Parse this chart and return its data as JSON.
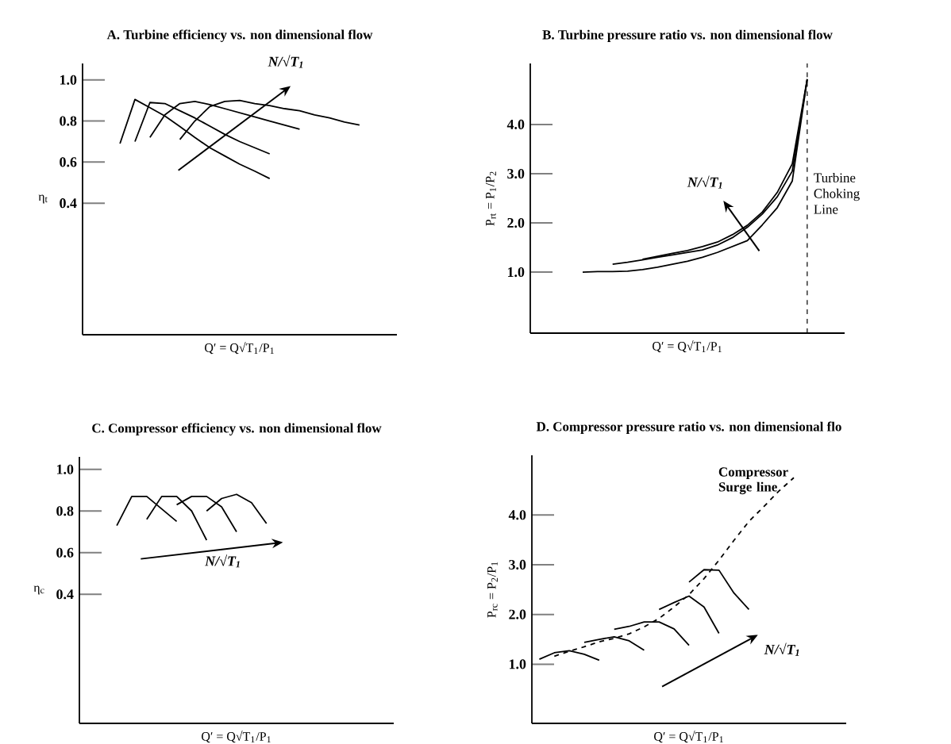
{
  "chart_data": [
    {
      "type": "line",
      "title": "A. Turbine efficiency vs. non dimensional flow",
      "xlabel": "Q′ = Q√T$_{1}$/P$_{1}$",
      "ylabel": "η$_{t}$",
      "ylim": [
        -0.24,
        1.08
      ],
      "yticks": [
        {
          "value": 0.4,
          "label": "0.4"
        },
        {
          "value": 0.6,
          "label": "0.6"
        },
        {
          "value": 0.8,
          "label": "0.8"
        },
        {
          "value": 1.0,
          "label": "1.0"
        }
      ],
      "tick_labels": "y",
      "annotations": [
        "N/√T$_{1}$"
      ],
      "categories": [
        null,
        null,
        null,
        null,
        null,
        null,
        null,
        null,
        null,
        null,
        null,
        null,
        null,
        null,
        null,
        null,
        null,
        null,
        null,
        null,
        null
      ],
      "series": [
        {
          "color": "#000000",
          "values": [
            null,
            null,
            0.69,
            0.905,
            0.865,
            0.824,
            0.773,
            0.72,
            0.67,
            0.63,
            0.59,
            0.556,
            0.52,
            null,
            null,
            null,
            null,
            null,
            null,
            null,
            null
          ]
        },
        {
          "color": "#000000",
          "values": [
            null,
            null,
            null,
            0.7,
            0.89,
            0.885,
            0.85,
            0.815,
            0.775,
            0.735,
            0.7,
            0.67,
            0.64,
            null,
            null,
            null,
            null,
            null,
            null,
            null,
            null
          ]
        },
        {
          "color": "#000000",
          "values": [
            null,
            null,
            null,
            null,
            0.72,
            0.83,
            0.885,
            0.895,
            0.88,
            0.86,
            0.84,
            0.82,
            0.8,
            0.78,
            0.76,
            null,
            null,
            null,
            null,
            null,
            null
          ]
        },
        {
          "color": "#000000",
          "values": [
            null,
            null,
            null,
            null,
            null,
            null,
            0.71,
            0.8,
            0.87,
            0.895,
            0.9,
            0.885,
            0.875,
            0.86,
            0.85,
            0.83,
            0.815,
            0.795,
            0.78,
            null,
            null
          ]
        }
      ]
    },
    {
      "type": "line",
      "title": "B. Turbine pressure ratio vs. non dimensional flow",
      "xlabel": "Q′ = Q√T$_{1}$/P$_{1}$",
      "ylabel": "P$_{rt}$ = P$_{1}$/P$_{2}$",
      "ylim": [
        -0.24,
        5.24
      ],
      "yticks": [
        {
          "value": 1.0,
          "label": "1.0"
        },
        {
          "value": 2.0,
          "label": "2.0"
        },
        {
          "value": 3.0,
          "label": "3.0"
        },
        {
          "value": 4.0,
          "label": "4.0"
        }
      ],
      "tick_labels": "y",
      "annotations": [
        "N/√T$_{1}$",
        "Turbine Choking Line"
      ],
      "categories": [
        null,
        null,
        null,
        null,
        null,
        null,
        null,
        null,
        null,
        null,
        null,
        null,
        null,
        null,
        null,
        null,
        null,
        null,
        null,
        null,
        null
      ],
      "series": [
        {
          "color": "#000000",
          "values": [
            null,
            null,
            null,
            1.0,
            1.01,
            1.01,
            1.02,
            1.05,
            1.1,
            1.16,
            1.22,
            1.3,
            1.4,
            1.52,
            1.64,
            1.96,
            2.31,
            2.85,
            4.92,
            null,
            null
          ]
        },
        {
          "color": "#000000",
          "values": [
            null,
            null,
            null,
            null,
            null,
            1.16,
            1.2,
            1.25,
            1.3,
            1.35,
            1.4,
            1.45,
            1.55,
            1.7,
            1.91,
            2.18,
            2.53,
            3.05,
            4.92,
            null,
            null
          ]
        },
        {
          "color": "#000000",
          "values": [
            null,
            null,
            null,
            null,
            null,
            null,
            null,
            1.26,
            1.32,
            1.38,
            1.44,
            1.52,
            1.61,
            1.76,
            1.95,
            2.22,
            2.62,
            3.2,
            4.92,
            null,
            null
          ]
        }
      ]
    },
    {
      "type": "line",
      "title": "C. Compressor efficiency vs. non dimensional flow",
      "xlabel": "Q′ = Q√T$_{1}$/P$_{1}$",
      "ylabel": "η$_{c}$",
      "ylim": [
        -0.22,
        1.06
      ],
      "yticks": [
        {
          "value": 0.4,
          "label": "0.4"
        },
        {
          "value": 0.6,
          "label": "0.6"
        },
        {
          "value": 0.8,
          "label": "0.8"
        },
        {
          "value": 1.0,
          "label": "1.0"
        }
      ],
      "tick_labels": "y",
      "annotations": [
        "N/√T$_{1}$"
      ],
      "categories": [
        null,
        null,
        null,
        null,
        null,
        null,
        null,
        null,
        null,
        null,
        null,
        null,
        null,
        null,
        null,
        null,
        null,
        null,
        null,
        null,
        null
      ],
      "series": [
        {
          "color": "#000000",
          "values": [
            null,
            null,
            0.73,
            0.87,
            0.87,
            0.81,
            0.75,
            null,
            null,
            null,
            null,
            null,
            null,
            null,
            null,
            null,
            null,
            null,
            null,
            null,
            null
          ]
        },
        {
          "color": "#000000",
          "values": [
            null,
            null,
            null,
            null,
            0.76,
            0.87,
            0.87,
            0.8,
            0.66,
            null,
            null,
            null,
            null,
            null,
            null,
            null,
            null,
            null,
            null,
            null,
            null
          ]
        },
        {
          "color": "#000000",
          "values": [
            null,
            null,
            null,
            null,
            null,
            null,
            0.83,
            0.87,
            0.87,
            0.82,
            0.7,
            null,
            null,
            null,
            null,
            null,
            null,
            null,
            null,
            null,
            null
          ]
        },
        {
          "color": "#000000",
          "values": [
            null,
            null,
            null,
            null,
            null,
            null,
            null,
            null,
            0.8,
            0.86,
            0.88,
            0.84,
            0.74,
            null,
            null,
            null,
            null,
            null,
            null,
            null,
            null
          ]
        }
      ]
    },
    {
      "type": "line",
      "title": "D. Compressor pressure ratio vs. non dimensional flo",
      "xlabel": "Q′ = Q√T$_{1}$/P$_{1}$",
      "ylabel": "P$_{rc}$ = P$_{2}$/P$_{1}$",
      "ylim": [
        -0.19,
        5.2
      ],
      "yticks": [
        {
          "value": 1.0,
          "label": "1.0"
        },
        {
          "value": 2.0,
          "label": "2.0"
        },
        {
          "value": 3.0,
          "label": "3.0"
        },
        {
          "value": 4.0,
          "label": "4.0"
        }
      ],
      "tick_labels": "y",
      "annotations": [
        "N/√T$_{1}$"
      ],
      "categories": [
        null,
        null,
        null,
        null,
        null,
        null,
        null,
        null,
        null,
        null,
        null,
        null,
        null,
        null,
        null,
        null,
        null,
        null,
        null,
        null,
        null
      ],
      "series": [
        {
          "color": "#000000",
          "values": [
            1.1,
            1.23,
            1.27,
            1.2,
            1.08,
            null,
            null,
            null,
            null,
            null,
            null,
            null,
            null,
            null,
            null,
            null,
            null,
            null,
            null,
            null,
            null
          ]
        },
        {
          "color": "#000000",
          "values": [
            null,
            null,
            null,
            1.44,
            1.5,
            1.55,
            1.47,
            1.28,
            null,
            null,
            null,
            null,
            null,
            null,
            null,
            null,
            null,
            null,
            null,
            null,
            null
          ]
        },
        {
          "color": "#000000",
          "values": [
            null,
            null,
            null,
            null,
            null,
            1.7,
            1.76,
            1.85,
            1.85,
            1.71,
            1.38,
            null,
            null,
            null,
            null,
            null,
            null,
            null,
            null,
            null,
            null
          ]
        },
        {
          "color": "#000000",
          "values": [
            null,
            null,
            null,
            null,
            null,
            null,
            null,
            null,
            2.1,
            2.24,
            2.37,
            2.15,
            1.62,
            null,
            null,
            null,
            null,
            null,
            null,
            null,
            null
          ]
        },
        {
          "color": "#000000",
          "values": [
            null,
            null,
            null,
            null,
            null,
            null,
            null,
            null,
            null,
            null,
            2.65,
            2.9,
            2.89,
            2.43,
            2.1,
            null,
            null,
            null,
            null,
            null,
            null
          ]
        },
        {
          "name": "Compressor Surge line",
          "color": "#000000",
          "line_style": "dashed",
          "values": [
            null,
            1.16,
            1.26,
            1.35,
            1.45,
            1.52,
            1.61,
            1.75,
            1.92,
            2.15,
            2.4,
            2.72,
            3.09,
            3.49,
            3.87,
            4.17,
            4.48,
            4.75,
            null,
            null,
            null
          ]
        }
      ]
    }
  ]
}
